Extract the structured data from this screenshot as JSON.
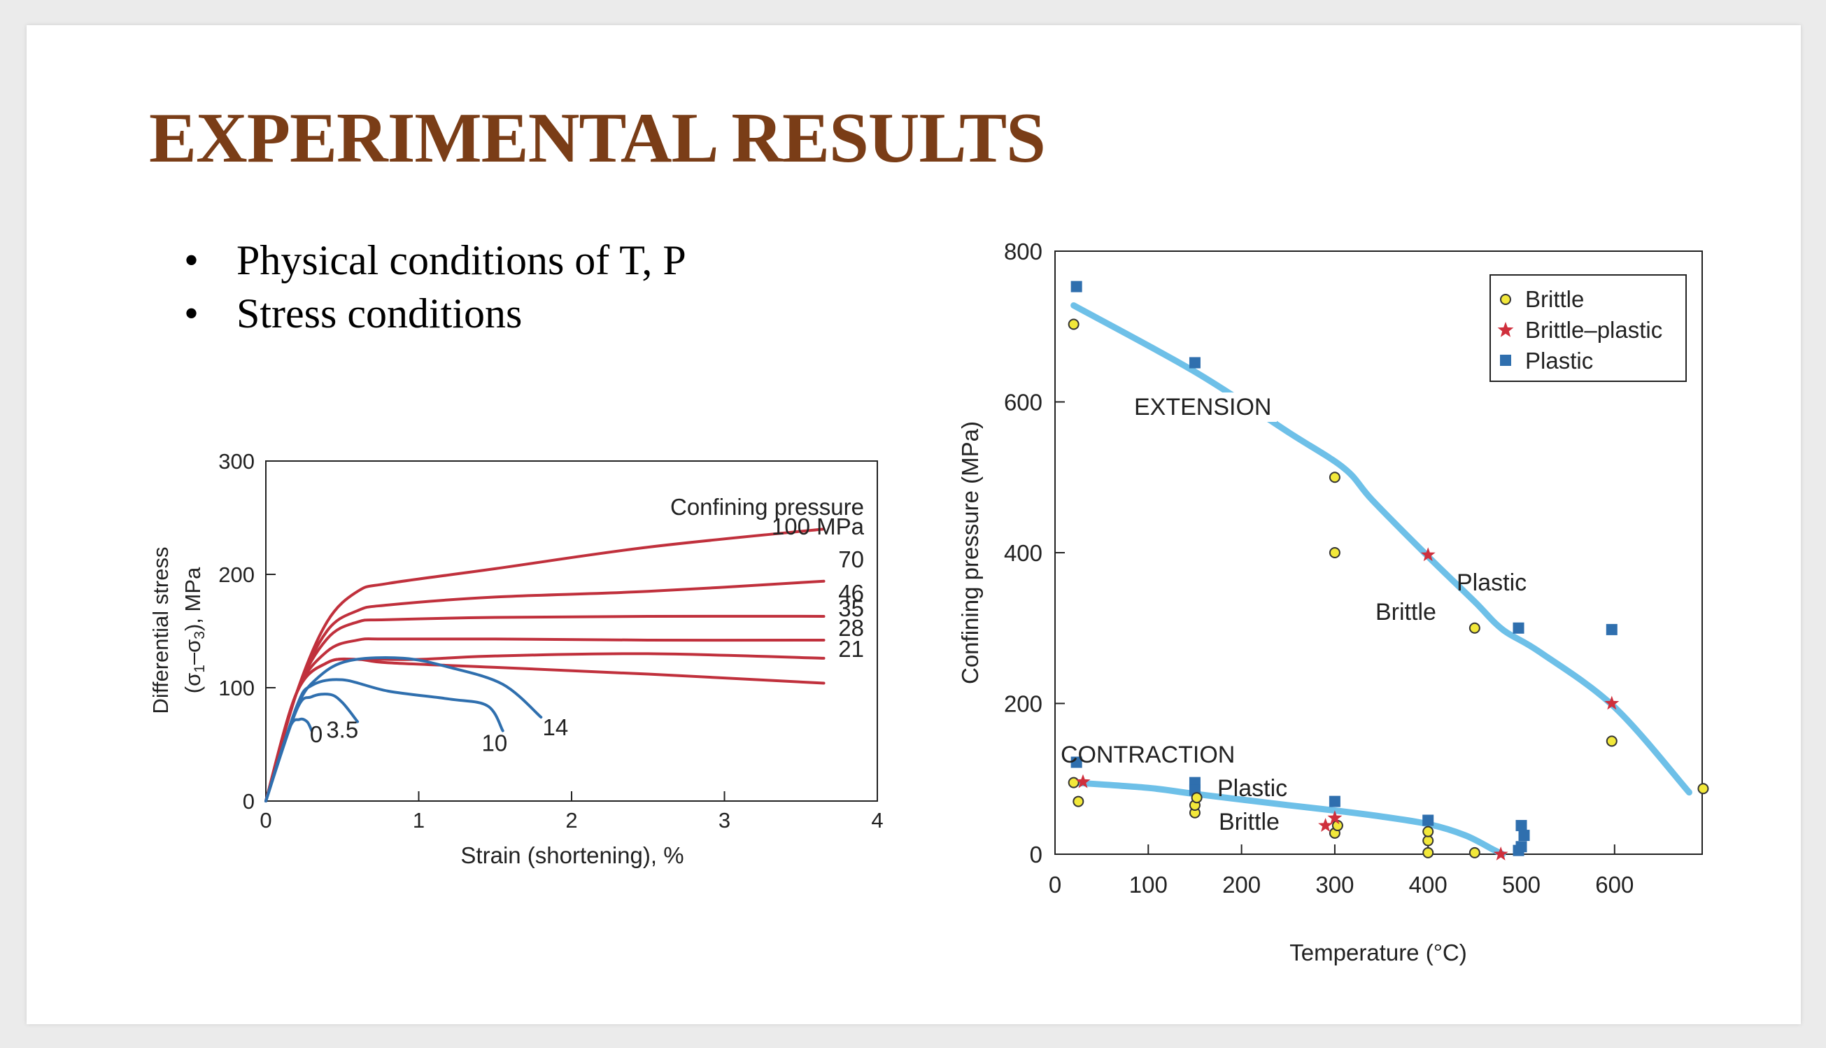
{
  "slide": {
    "title": "EXPERIMENTAL RESULTS",
    "bullets": [
      "Physical conditions of T, P",
      "Stress conditions"
    ]
  },
  "colors": {
    "title": "#7a3d17",
    "red_curve": "#c0303c",
    "blue_curve": "#2f6fae",
    "boundary": "#6ec0e8",
    "brittle_fill": "#f2e83a",
    "star": "#cf2f3c",
    "square": "#2f6fae"
  },
  "chart_data": [
    {
      "type": "line",
      "title": "",
      "xlabel": "Strain (shortening), %",
      "ylabel_line1": "Differential stress",
      "ylabel_line2": "(σ1–σ3), MPa",
      "xlim": [
        0,
        4
      ],
      "ylim": [
        0,
        300
      ],
      "xticks": [
        0,
        1,
        2,
        3,
        4
      ],
      "yticks": [
        0,
        100,
        200,
        300
      ],
      "legend_title": "Confining pressure",
      "series": [
        {
          "name": "100 MPa",
          "color": "red",
          "points": [
            [
              0,
              0
            ],
            [
              0.2,
              95
            ],
            [
              0.4,
              158
            ],
            [
              0.6,
              185
            ],
            [
              0.8,
              192
            ],
            [
              1.5,
              205
            ],
            [
              2.5,
              224
            ],
            [
              3.65,
              240
            ]
          ]
        },
        {
          "name": "70",
          "color": "red",
          "points": [
            [
              0,
              0
            ],
            [
              0.2,
              95
            ],
            [
              0.4,
              150
            ],
            [
              0.6,
              168
            ],
            [
              0.8,
              173
            ],
            [
              1.5,
              180
            ],
            [
              2.5,
              185
            ],
            [
              3.65,
              194
            ]
          ]
        },
        {
          "name": "46",
          "color": "red",
          "points": [
            [
              0,
              0
            ],
            [
              0.2,
              95
            ],
            [
              0.4,
              143
            ],
            [
              0.6,
              158
            ],
            [
              0.8,
              160
            ],
            [
              1.5,
              162
            ],
            [
              2.5,
              163
            ],
            [
              3.65,
              163
            ]
          ]
        },
        {
          "name": "35",
          "color": "red",
          "points": [
            [
              0,
              0
            ],
            [
              0.2,
              95
            ],
            [
              0.4,
              132
            ],
            [
              0.6,
              142
            ],
            [
              0.8,
              143
            ],
            [
              1.5,
              143
            ],
            [
              2.5,
              142
            ],
            [
              3.65,
              142
            ]
          ]
        },
        {
          "name": "28",
          "color": "red",
          "points": [
            [
              0,
              0
            ],
            [
              0.2,
              95
            ],
            [
              0.4,
              122
            ],
            [
              0.6,
              125
            ],
            [
              1.0,
              125
            ],
            [
              1.5,
              128
            ],
            [
              2.5,
              130
            ],
            [
              3.65,
              126
            ]
          ]
        },
        {
          "name": "21",
          "color": "red",
          "points": [
            [
              0,
              0
            ],
            [
              0.2,
              95
            ],
            [
              0.4,
              122
            ],
            [
              0.6,
              125
            ],
            [
              0.8,
              122
            ],
            [
              1.5,
              118
            ],
            [
              2.5,
              112
            ],
            [
              3.65,
              104
            ]
          ]
        },
        {
          "name": "14",
          "color": "blue",
          "points": [
            [
              0,
              0
            ],
            [
              0.2,
              82
            ],
            [
              0.35,
              110
            ],
            [
              0.55,
              124
            ],
            [
              0.9,
              126
            ],
            [
              1.2,
              118
            ],
            [
              1.55,
              103
            ],
            [
              1.8,
              74
            ]
          ]
        },
        {
          "name": "10",
          "color": "blue",
          "points": [
            [
              0,
              0
            ],
            [
              0.2,
              83
            ],
            [
              0.3,
              102
            ],
            [
              0.5,
              107
            ],
            [
              0.8,
              97
            ],
            [
              1.2,
              90
            ],
            [
              1.45,
              84
            ],
            [
              1.55,
              62
            ]
          ]
        },
        {
          "name": "3.5",
          "color": "blue",
          "points": [
            [
              0,
              0
            ],
            [
              0.2,
              80
            ],
            [
              0.3,
              92
            ],
            [
              0.42,
              94
            ],
            [
              0.5,
              87
            ],
            [
              0.6,
              70
            ]
          ]
        },
        {
          "name": "0",
          "color": "blue",
          "points": [
            [
              0,
              0
            ],
            [
              0.15,
              63
            ],
            [
              0.22,
              72
            ],
            [
              0.27,
              70
            ],
            [
              0.3,
              62
            ]
          ]
        }
      ]
    },
    {
      "type": "scatter",
      "title": "",
      "xlabel": "Temperature (°C)",
      "ylabel": "Confining pressure (MPa)",
      "xlim": [
        0,
        700
      ],
      "ylim": [
        0,
        800
      ],
      "xticks": [
        0,
        100,
        200,
        300,
        400,
        500,
        600
      ],
      "yticks": [
        0,
        200,
        400,
        600,
        800
      ],
      "legend_position": "top-right",
      "legend": [
        {
          "label": "Brittle",
          "marker": "circle"
        },
        {
          "label": "Brittle–plastic",
          "marker": "star"
        },
        {
          "label": "Plastic",
          "marker": "square"
        }
      ],
      "boundaries": [
        {
          "name": "extension",
          "points": [
            [
              20,
              728
            ],
            [
              150,
              640
            ],
            [
              250,
              560
            ],
            [
              310,
              512
            ],
            [
              340,
              470
            ],
            [
              400,
              395
            ],
            [
              450,
              335
            ],
            [
              480,
              298
            ],
            [
              520,
              268
            ],
            [
              600,
              195
            ],
            [
              680,
              82
            ]
          ]
        },
        {
          "name": "contraction",
          "points": [
            [
              20,
              95
            ],
            [
              100,
              88
            ],
            [
              150,
              80
            ],
            [
              250,
              65
            ],
            [
              300,
              58
            ],
            [
              350,
              50
            ],
            [
              400,
              40
            ],
            [
              440,
              25
            ],
            [
              470,
              6
            ],
            [
              480,
              0
            ]
          ]
        }
      ],
      "region_labels": [
        "EXTENSION",
        "CONTRACTION",
        "Plastic",
        "Brittle",
        "Plastic",
        "Brittle"
      ],
      "brittle": [
        [
          20,
          703
        ],
        [
          300,
          500
        ],
        [
          300,
          400
        ],
        [
          450,
          300
        ],
        [
          597,
          150
        ],
        [
          695,
          87
        ],
        [
          20,
          95
        ],
        [
          25,
          70
        ],
        [
          150,
          55
        ],
        [
          150,
          65
        ],
        [
          152,
          75
        ],
        [
          300,
          28
        ],
        [
          303,
          38
        ],
        [
          400,
          2
        ],
        [
          400,
          18
        ],
        [
          400,
          30
        ],
        [
          450,
          2
        ]
      ],
      "brittle_plastic": [
        [
          400,
          397
        ],
        [
          597,
          200
        ],
        [
          30,
          96
        ],
        [
          300,
          48
        ],
        [
          290,
          38
        ],
        [
          478,
          0
        ]
      ],
      "plastic": [
        [
          23,
          753
        ],
        [
          150,
          652
        ],
        [
          497,
          300
        ],
        [
          597,
          298
        ],
        [
          23,
          122
        ],
        [
          150,
          95
        ],
        [
          150,
          85
        ],
        [
          300,
          70
        ],
        [
          400,
          45
        ],
        [
          500,
          38
        ],
        [
          503,
          25
        ],
        [
          500,
          10
        ],
        [
          497,
          5
        ]
      ]
    }
  ]
}
